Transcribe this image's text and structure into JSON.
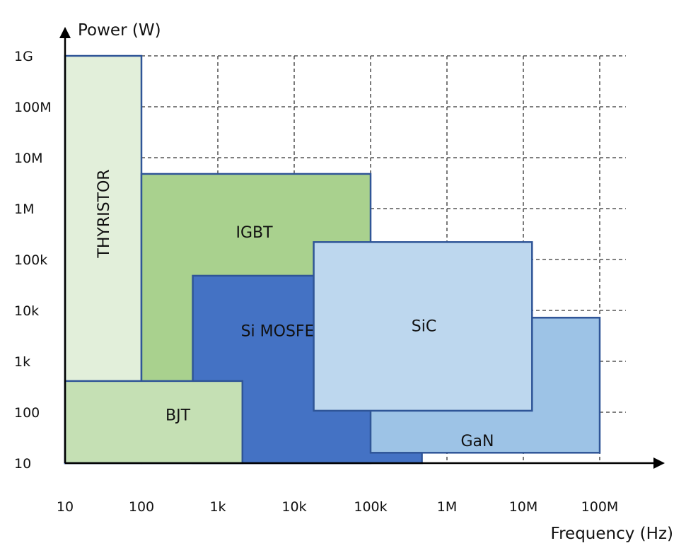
{
  "chart_data": {
    "type": "area",
    "title": "",
    "xlabel": "Frequency (Hz)",
    "ylabel": "Power (W)",
    "x_scale": "log",
    "y_scale": "log",
    "xlim": [
      10,
      100000000
    ],
    "ylim": [
      10,
      1000000000
    ],
    "grid": true,
    "x_ticks": [
      {
        "value": 10,
        "label": "10"
      },
      {
        "value": 100,
        "label": "100"
      },
      {
        "value": 1000,
        "label": "1k"
      },
      {
        "value": 10000,
        "label": "10k"
      },
      {
        "value": 100000,
        "label": "100k"
      },
      {
        "value": 1000000,
        "label": "1M"
      },
      {
        "value": 10000000,
        "label": "10M"
      },
      {
        "value": 100000000,
        "label": "100M"
      }
    ],
    "y_ticks": [
      {
        "value": 10,
        "label": "10"
      },
      {
        "value": 100,
        "label": "100"
      },
      {
        "value": 1000,
        "label": "1k"
      },
      {
        "value": 10000,
        "label": "10k"
      },
      {
        "value": 100000,
        "label": "100k"
      },
      {
        "value": 1000000,
        "label": "1M"
      },
      {
        "value": 10000000,
        "label": "10M"
      },
      {
        "value": 100000000,
        "label": "100M"
      },
      {
        "value": 1000000000,
        "label": "1G"
      }
    ],
    "regions": [
      {
        "name": "THYRISTOR",
        "x": [
          10,
          100
        ],
        "y": [
          10,
          1000000000
        ],
        "color": "#e2efda",
        "vertical_label": true
      },
      {
        "name": "IGBT",
        "x": [
          100,
          100000
        ],
        "y": [
          10,
          4800000
        ],
        "color": "#a9d18e",
        "label_at": [
          3000,
          350000
        ]
      },
      {
        "name": "Si MOSFET",
        "x": [
          470,
          470000
        ],
        "y": [
          10,
          48000
        ],
        "color": "#4472c4",
        "label_at": [
          7000,
          4000
        ]
      },
      {
        "name": "BJT",
        "x": [
          10,
          2100
        ],
        "y": [
          10,
          410
        ],
        "color": "#c5e0b4",
        "label_at": [
          300,
          90
        ]
      },
      {
        "name": "GaN",
        "x": [
          100000,
          100000000
        ],
        "y": [
          16,
          7200
        ],
        "color": "#9dc3e6",
        "label_at": [
          2500000,
          28
        ]
      },
      {
        "name": "SiC",
        "x": [
          18000,
          13000000
        ],
        "y": [
          107,
          220000
        ],
        "color": "#bdd7ee",
        "label_at": [
          500000,
          5000
        ]
      }
    ],
    "border_color": "#2f5597"
  }
}
